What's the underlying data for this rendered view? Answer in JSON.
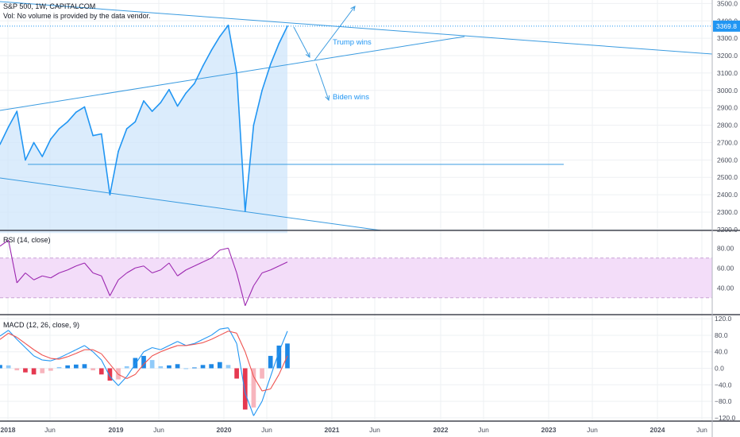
{
  "header": {
    "title": "S&P 500, 1W, CAPITALCOM",
    "volume_note": "Vol: No volume is provided by the data vendor."
  },
  "colors": {
    "price": "#2196f3",
    "price_fill": "#cfe6fb",
    "trendline": "#3a9be0",
    "rsi": "#9c27b0",
    "rsi_band": "#f3ddf9",
    "macd_line": "#2196f3",
    "signal_line": "#ef5350",
    "hist_pos_strong": "#1e88e5",
    "hist_pos_weak": "#90caf9",
    "hist_neg_strong": "#e53950",
    "hist_neg_weak": "#f7b5bd",
    "grid": "#eef0f3",
    "axis_text": "#4a4f5c"
  },
  "x_axis": {
    "labels": [
      "2018",
      "Jun",
      "2019",
      "Jun",
      "2020",
      "Jun",
      "2021",
      "Jun",
      "2022",
      "Jun",
      "2023",
      "Jun",
      "2024",
      "Jun"
    ]
  },
  "chart_data": [
    {
      "type": "line",
      "title": "S&P 500, 1W, CAPITALCOM",
      "yticks": [
        2200,
        2300,
        2400,
        2500,
        2600,
        2700,
        2800,
        2900,
        3000,
        3100,
        3200,
        3300,
        3400,
        3500
      ],
      "ylim": [
        2195,
        3520
      ],
      "last_value_label": "3369.8",
      "last_value": 3369.8,
      "x": [
        "2017-12",
        "2018-01",
        "2018-02",
        "2018-02",
        "2018-03",
        "2018-04",
        "2018-05",
        "2018-06",
        "2018-07",
        "2018-08",
        "2018-09",
        "2018-10",
        "2018-11",
        "2018-12",
        "2019-01",
        "2019-02",
        "2019-03",
        "2019-04",
        "2019-05",
        "2019-06",
        "2019-07",
        "2019-08",
        "2019-09",
        "2019-10",
        "2019-11",
        "2019-12",
        "2020-01",
        "2020-02",
        "2020-02",
        "2020-03",
        "2020-04",
        "2020-05",
        "2020-06",
        "2020-07",
        "2020-08"
      ],
      "values": [
        2690,
        2790,
        2880,
        2600,
        2700,
        2620,
        2720,
        2780,
        2820,
        2875,
        2905,
        2740,
        2750,
        2400,
        2650,
        2780,
        2820,
        2940,
        2880,
        2930,
        3005,
        2910,
        2985,
        3040,
        3140,
        3230,
        3310,
        3375,
        3100,
        2305,
        2800,
        3000,
        3150,
        3270,
        3369.8
      ],
      "annotations": [
        "Trump wins",
        "Biden wins"
      ],
      "horizontal_level": 2575
    },
    {
      "type": "line",
      "title": "RSI (14, close)",
      "yticks": [
        40,
        60,
        80
      ],
      "ylim": [
        13,
        97
      ],
      "band": [
        30,
        70
      ],
      "values": [
        82,
        88,
        45,
        55,
        48,
        52,
        50,
        55,
        58,
        62,
        65,
        55,
        52,
        32,
        48,
        55,
        60,
        62,
        55,
        58,
        65,
        52,
        58,
        62,
        66,
        70,
        78,
        80,
        55,
        22,
        42,
        55,
        58,
        62,
        66
      ]
    },
    {
      "type": "bar",
      "title": "MACD (12, 26, close, 9)",
      "yticks": [
        -120,
        -80,
        -40,
        0,
        40,
        80,
        120
      ],
      "ylim": [
        -128,
        128
      ],
      "series": [
        {
          "values": [
            78,
            92,
            70,
            50,
            30,
            20,
            18,
            25,
            35,
            45,
            55,
            40,
            20,
            -20,
            -42,
            -20,
            10,
            40,
            50,
            45,
            55,
            65,
            55,
            60,
            70,
            80,
            95,
            98,
            60,
            -60,
            -115,
            -80,
            -20,
            40,
            90
          ]
        },
        {
          "values": [
            70,
            85,
            75,
            60,
            45,
            32,
            24,
            22,
            28,
            36,
            45,
            45,
            35,
            10,
            -15,
            -25,
            -15,
            10,
            30,
            40,
            48,
            55,
            55,
            58,
            62,
            70,
            80,
            90,
            85,
            40,
            -20,
            -55,
            -50,
            -15,
            30
          ]
        },
        {
          "values": [
            8,
            7,
            -5,
            -10,
            -15,
            -12,
            -6,
            3,
            7,
            9,
            10,
            -5,
            -15,
            -30,
            -27,
            5,
            25,
            30,
            20,
            5,
            7,
            10,
            0,
            2,
            8,
            10,
            15,
            8,
            -25,
            -100,
            -95,
            -25,
            30,
            55,
            60
          ]
        }
      ]
    }
  ]
}
